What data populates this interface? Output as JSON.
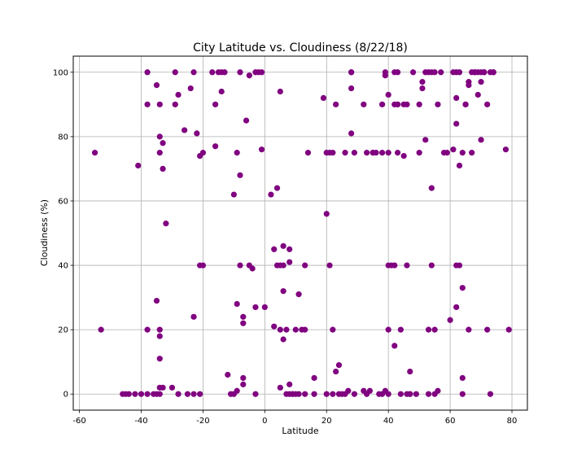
{
  "chart_data": {
    "type": "scatter",
    "title": "City Latitude vs. Cloudiness (8/22/18)",
    "xlabel": "Latitude",
    "ylabel": "Cloudiness (%)",
    "xlim": [
      -62,
      85
    ],
    "ylim": [
      -5,
      105
    ],
    "xticks": [
      -60,
      -40,
      -20,
      0,
      20,
      40,
      60,
      80
    ],
    "yticks": [
      0,
      20,
      40,
      60,
      80,
      100
    ],
    "grid": true,
    "marker_color": "#800080",
    "points": [
      [
        -55,
        75
      ],
      [
        -53,
        20
      ],
      [
        -46,
        0
      ],
      [
        -45,
        0
      ],
      [
        -44,
        0
      ],
      [
        -42,
        0
      ],
      [
        -41,
        71
      ],
      [
        -40,
        0
      ],
      [
        -38,
        100
      ],
      [
        -38,
        90
      ],
      [
        -38,
        20
      ],
      [
        -38,
        0
      ],
      [
        -36,
        0
      ],
      [
        -35,
        96
      ],
      [
        -35,
        29
      ],
      [
        -35,
        0
      ],
      [
        -34,
        18
      ],
      [
        -34,
        75
      ],
      [
        -34,
        90
      ],
      [
        -34,
        80
      ],
      [
        -34,
        20
      ],
      [
        -34,
        11
      ],
      [
        -34,
        2
      ],
      [
        -34,
        0
      ],
      [
        -33,
        78
      ],
      [
        -33,
        70
      ],
      [
        -33,
        2
      ],
      [
        -32,
        53
      ],
      [
        -30,
        2
      ],
      [
        -29,
        100
      ],
      [
        -29,
        90
      ],
      [
        -28,
        93
      ],
      [
        -28,
        0
      ],
      [
        -26,
        82
      ],
      [
        -25,
        0
      ],
      [
        -24,
        95
      ],
      [
        -23,
        100
      ],
      [
        -23,
        24
      ],
      [
        -23,
        0
      ],
      [
        -22,
        81
      ],
      [
        -21,
        74
      ],
      [
        -21,
        40
      ],
      [
        -21,
        0
      ],
      [
        -20,
        75
      ],
      [
        -20,
        40
      ],
      [
        -17,
        100
      ],
      [
        -16,
        77
      ],
      [
        -16,
        90
      ],
      [
        -15,
        100
      ],
      [
        -14,
        100
      ],
      [
        -14,
        94
      ],
      [
        -13,
        100
      ],
      [
        -12,
        6
      ],
      [
        -11,
        0
      ],
      [
        -10,
        0
      ],
      [
        -10,
        62
      ],
      [
        -9,
        75
      ],
      [
        -9,
        28
      ],
      [
        -9,
        1
      ],
      [
        -8,
        68
      ],
      [
        -8,
        100
      ],
      [
        -8,
        40
      ],
      [
        -7,
        22
      ],
      [
        -7,
        24
      ],
      [
        -7,
        5
      ],
      [
        -7,
        3
      ],
      [
        -6,
        85
      ],
      [
        -5,
        99
      ],
      [
        -5,
        40
      ],
      [
        -4,
        39
      ],
      [
        -3,
        100
      ],
      [
        -3,
        27
      ],
      [
        -3,
        0
      ],
      [
        -2,
        100
      ],
      [
        -1,
        76
      ],
      [
        -1,
        100
      ],
      [
        0,
        27
      ],
      [
        2,
        62
      ],
      [
        3,
        45
      ],
      [
        3,
        21
      ],
      [
        4,
        64
      ],
      [
        4,
        40
      ],
      [
        5,
        40
      ],
      [
        5,
        94
      ],
      [
        5,
        2
      ],
      [
        5,
        20
      ],
      [
        6,
        46
      ],
      [
        6,
        32
      ],
      [
        6,
        17
      ],
      [
        6,
        40
      ],
      [
        7,
        0
      ],
      [
        7,
        20
      ],
      [
        8,
        45
      ],
      [
        8,
        41
      ],
      [
        8,
        0
      ],
      [
        8,
        3
      ],
      [
        9,
        0
      ],
      [
        9,
        0
      ],
      [
        10,
        20
      ],
      [
        10,
        0
      ],
      [
        11,
        31
      ],
      [
        11,
        0
      ],
      [
        12,
        20
      ],
      [
        13,
        20
      ],
      [
        13,
        40
      ],
      [
        13,
        0
      ],
      [
        14,
        75
      ],
      [
        16,
        5
      ],
      [
        16,
        0
      ],
      [
        19,
        92
      ],
      [
        20,
        0
      ],
      [
        20,
        56
      ],
      [
        20,
        75
      ],
      [
        21,
        75
      ],
      [
        21,
        40
      ],
      [
        22,
        75
      ],
      [
        22,
        20
      ],
      [
        22,
        0
      ],
      [
        23,
        90
      ],
      [
        23,
        7
      ],
      [
        24,
        9
      ],
      [
        24,
        0
      ],
      [
        25,
        0
      ],
      [
        26,
        75
      ],
      [
        26,
        0
      ],
      [
        27,
        1
      ],
      [
        28,
        100
      ],
      [
        28,
        95
      ],
      [
        28,
        81
      ],
      [
        28,
        100
      ],
      [
        29,
        75
      ],
      [
        29,
        0
      ],
      [
        32,
        90
      ],
      [
        32,
        1
      ],
      [
        33,
        0
      ],
      [
        33,
        75
      ],
      [
        34,
        1
      ],
      [
        35,
        75
      ],
      [
        35,
        75
      ],
      [
        36,
        75
      ],
      [
        37,
        0
      ],
      [
        38,
        90
      ],
      [
        38,
        75
      ],
      [
        38,
        0
      ],
      [
        39,
        1
      ],
      [
        39,
        100
      ],
      [
        39,
        99
      ],
      [
        40,
        75
      ],
      [
        40,
        40
      ],
      [
        40,
        93
      ],
      [
        40,
        20
      ],
      [
        40,
        0
      ],
      [
        41,
        40
      ],
      [
        42,
        100
      ],
      [
        42,
        90
      ],
      [
        42,
        40
      ],
      [
        42,
        15
      ],
      [
        43,
        90
      ],
      [
        43,
        100
      ],
      [
        43,
        90
      ],
      [
        43,
        75
      ],
      [
        44,
        20
      ],
      [
        44,
        0
      ],
      [
        45,
        74
      ],
      [
        45,
        90
      ],
      [
        46,
        90
      ],
      [
        46,
        40
      ],
      [
        46,
        0
      ],
      [
        47,
        0
      ],
      [
        47,
        7
      ],
      [
        47,
        0
      ],
      [
        48,
        100
      ],
      [
        49,
        0
      ],
      [
        50,
        75
      ],
      [
        50,
        90
      ],
      [
        51,
        97
      ],
      [
        51,
        95
      ],
      [
        52,
        100
      ],
      [
        52,
        79
      ],
      [
        53,
        100
      ],
      [
        53,
        20
      ],
      [
        53,
        0
      ],
      [
        54,
        100
      ],
      [
        54,
        40
      ],
      [
        54,
        64
      ],
      [
        55,
        20
      ],
      [
        55,
        100
      ],
      [
        55,
        0
      ],
      [
        56,
        1
      ],
      [
        56,
        90
      ],
      [
        57,
        100
      ],
      [
        58,
        75
      ],
      [
        59,
        75
      ],
      [
        60,
        23
      ],
      [
        61,
        76
      ],
      [
        61,
        100
      ],
      [
        62,
        92
      ],
      [
        62,
        100
      ],
      [
        62,
        84
      ],
      [
        62,
        27
      ],
      [
        62,
        40
      ],
      [
        63,
        40
      ],
      [
        63,
        100
      ],
      [
        63,
        71
      ],
      [
        64,
        75
      ],
      [
        64,
        0
      ],
      [
        64,
        5
      ],
      [
        64,
        33
      ],
      [
        65,
        90
      ],
      [
        65,
        90
      ],
      [
        66,
        96
      ],
      [
        66,
        97
      ],
      [
        66,
        20
      ],
      [
        67,
        100
      ],
      [
        67,
        75
      ],
      [
        68,
        100
      ],
      [
        68,
        100
      ],
      [
        69,
        93
      ],
      [
        69,
        100
      ],
      [
        70,
        100
      ],
      [
        70,
        79
      ],
      [
        70,
        97
      ],
      [
        71,
        100
      ],
      [
        71,
        100
      ],
      [
        72,
        20
      ],
      [
        72,
        90
      ],
      [
        73,
        0
      ],
      [
        73,
        100
      ],
      [
        74,
        100
      ],
      [
        74,
        100
      ],
      [
        78,
        76
      ],
      [
        79,
        20
      ]
    ]
  }
}
